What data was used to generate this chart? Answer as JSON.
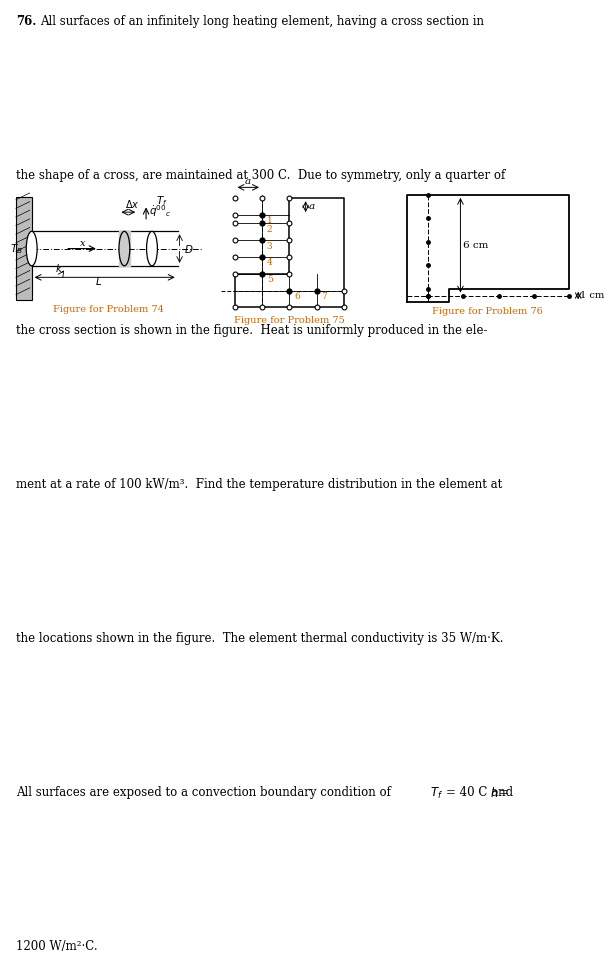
{
  "text_color": "#000000",
  "orange_color": "#CC6600",
  "bg_color": "#ffffff",
  "fig74_label": "Figure for Problem 74",
  "fig75_label": "Figure for Problem 75",
  "fig76_label": "Figure for Problem 76"
}
